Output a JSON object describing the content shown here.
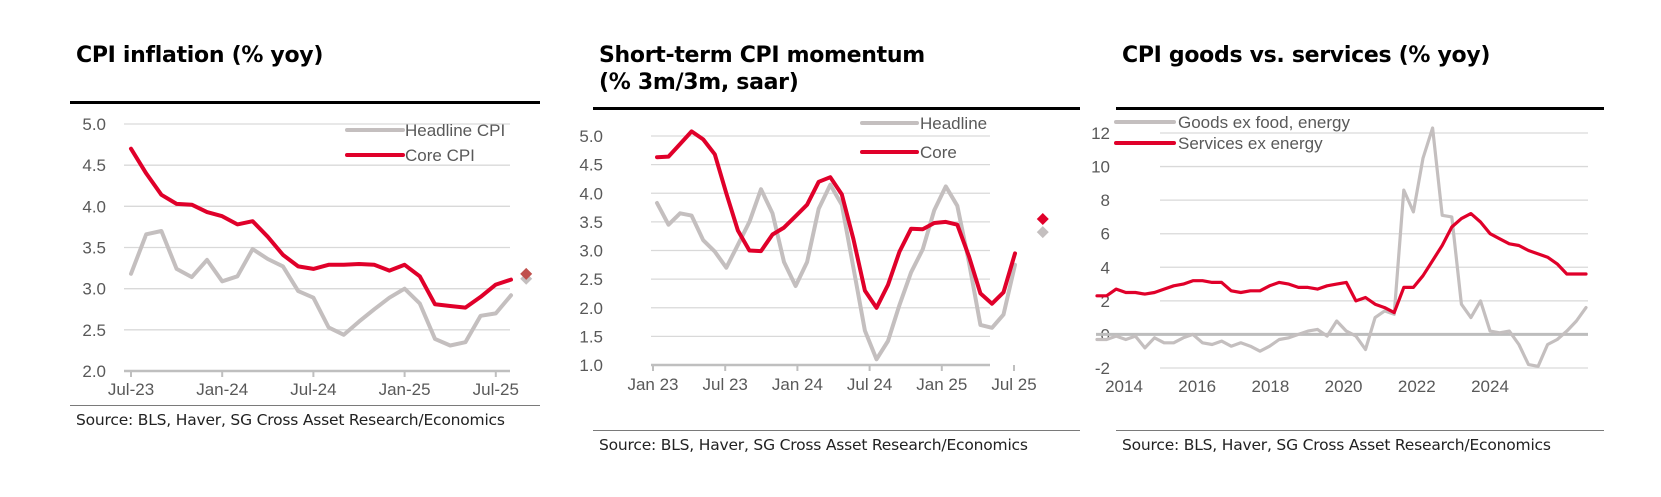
{
  "colors": {
    "headline": "#c4bfbf",
    "core": "#e0002a",
    "grid": "#d9d9d9",
    "axis": "#bfbfbf",
    "diamond_core": "#c0504d"
  },
  "panels": [
    {
      "title_lines": [
        "CPI inflation (% yoy)"
      ],
      "source": "Source: BLS, Haver, SG Cross Asset Research/Economics"
    },
    {
      "title_lines": [
        "Short-term CPI momentum",
        "(% 3m/3m, saar)"
      ],
      "source": "Source: BLS, Haver, SG Cross Asset Research/Economics"
    },
    {
      "title_lines": [
        "CPI goods vs. services (% yoy)"
      ],
      "source": "Source: BLS, Haver, SG Cross Asset Research/Economics"
    }
  ],
  "chart_data": [
    {
      "type": "line",
      "title": "CPI inflation (% yoy)",
      "xlabel": "",
      "ylabel": "",
      "ylim": [
        2.0,
        5.0
      ],
      "yticks": [
        "2.0",
        "2.5",
        "3.0",
        "3.5",
        "4.0",
        "4.5",
        "5.0"
      ],
      "xticks": [
        "Jul-23",
        "Jan-24",
        "Jul-24",
        "Jan-25",
        "Jul-25"
      ],
      "x_start": "Jul-23",
      "frequency": "monthly",
      "grid": true,
      "legend_position": "top-right",
      "series": [
        {
          "name": "Headline CPI",
          "color_key": "headline",
          "values": [
            3.18,
            3.66,
            3.7,
            3.24,
            3.14,
            3.35,
            3.09,
            3.15,
            3.48,
            3.36,
            3.27,
            2.97,
            2.89,
            2.53,
            2.44,
            2.6,
            2.75,
            2.89,
            3.0,
            2.82,
            2.39,
            2.31,
            2.35,
            2.67,
            2.7,
            2.92
          ],
          "forecast_marker": 3.12
        },
        {
          "name": "Core CPI",
          "color_key": "core",
          "values": [
            4.7,
            4.4,
            4.14,
            4.03,
            4.02,
            3.93,
            3.88,
            3.78,
            3.82,
            3.63,
            3.41,
            3.27,
            3.24,
            3.29,
            3.29,
            3.3,
            3.29,
            3.22,
            3.29,
            3.15,
            2.81,
            2.79,
            2.77,
            2.9,
            3.05,
            3.11
          ],
          "forecast_marker": 3.18
        }
      ]
    },
    {
      "type": "line",
      "title": "Short-term CPI momentum (% 3m/3m, saar)",
      "xlabel": "",
      "ylabel": "",
      "ylim": [
        1.0,
        5.0
      ],
      "yticks": [
        "1.0",
        "1.5",
        "2.0",
        "2.5",
        "3.0",
        "3.5",
        "4.0",
        "4.5",
        "5.0"
      ],
      "xticks": [
        "Jan 23",
        "Jul 23",
        "Jan 24",
        "Jul 24",
        "Jan 25",
        "Jul 25"
      ],
      "x_start": "Jan 23",
      "frequency": "monthly",
      "grid": true,
      "legend_position": "top-right",
      "series": [
        {
          "name": "Headline",
          "color_key": "headline",
          "values": [
            3.83,
            3.45,
            3.65,
            3.61,
            3.18,
            2.98,
            2.7,
            3.1,
            3.5,
            4.07,
            3.65,
            2.8,
            2.38,
            2.8,
            3.73,
            4.15,
            3.8,
            2.7,
            1.6,
            1.1,
            1.42,
            2.05,
            2.62,
            3.02,
            3.7,
            4.12,
            3.78,
            2.8,
            1.7,
            1.65,
            1.88,
            2.75
          ],
          "forecast_marker": 3.32
        },
        {
          "name": "Core",
          "color_key": "core",
          "values": [
            4.63,
            4.64,
            4.86,
            5.08,
            4.94,
            4.68,
            4.0,
            3.35,
            3.0,
            2.99,
            3.28,
            3.4,
            3.6,
            3.8,
            4.2,
            4.28,
            3.98,
            3.2,
            2.3,
            2.0,
            2.4,
            2.98,
            3.38,
            3.37,
            3.48,
            3.5,
            3.45,
            2.9,
            2.25,
            2.07,
            2.27,
            2.95
          ],
          "forecast_marker": 3.55
        }
      ]
    },
    {
      "type": "line",
      "title": "CPI goods vs. services (% yoy)",
      "xlabel": "",
      "ylabel": "",
      "ylim": [
        -2,
        12
      ],
      "yticks": [
        "-2",
        "0",
        "2",
        "4",
        "6",
        "8",
        "10",
        "12"
      ],
      "xticks": [
        "2014",
        "2016",
        "2018",
        "2020",
        "2022",
        "2024"
      ],
      "x_start": "2014-01",
      "frequency": "quarterly",
      "grid": true,
      "legend_position": "top-left",
      "series": [
        {
          "name": "Goods ex food, energy",
          "color_key": "headline",
          "values": [
            -0.3,
            -0.3,
            -0.1,
            -0.3,
            -0.1,
            -0.8,
            -0.2,
            -0.5,
            -0.5,
            -0.2,
            0.0,
            -0.5,
            -0.6,
            -0.4,
            -0.7,
            -0.5,
            -0.7,
            -1.0,
            -0.7,
            -0.3,
            -0.2,
            0.0,
            0.2,
            0.3,
            -0.1,
            0.8,
            0.2,
            -0.1,
            -0.9,
            1.0,
            1.4,
            1.2,
            8.6,
            7.3,
            10.5,
            12.3,
            7.1,
            7.0,
            1.8,
            1.0,
            2.0,
            0.2,
            0.1,
            0.2,
            -0.6,
            -1.8,
            -1.9,
            -0.6,
            -0.3,
            0.2,
            0.8,
            1.6
          ]
        },
        {
          "name": "Services ex energy",
          "color_key": "core",
          "values": [
            2.3,
            2.3,
            2.7,
            2.5,
            2.5,
            2.4,
            2.5,
            2.7,
            2.9,
            3.0,
            3.2,
            3.2,
            3.1,
            3.1,
            2.6,
            2.5,
            2.6,
            2.6,
            2.9,
            3.1,
            3.0,
            2.8,
            2.8,
            2.7,
            2.9,
            3.0,
            3.1,
            2.0,
            2.2,
            1.8,
            1.6,
            1.3,
            2.8,
            2.8,
            3.5,
            4.4,
            5.3,
            6.4,
            6.9,
            7.2,
            6.7,
            6.0,
            5.7,
            5.4,
            5.3,
            5.0,
            4.8,
            4.6,
            4.2,
            3.6,
            3.6,
            3.6
          ]
        }
      ]
    }
  ]
}
